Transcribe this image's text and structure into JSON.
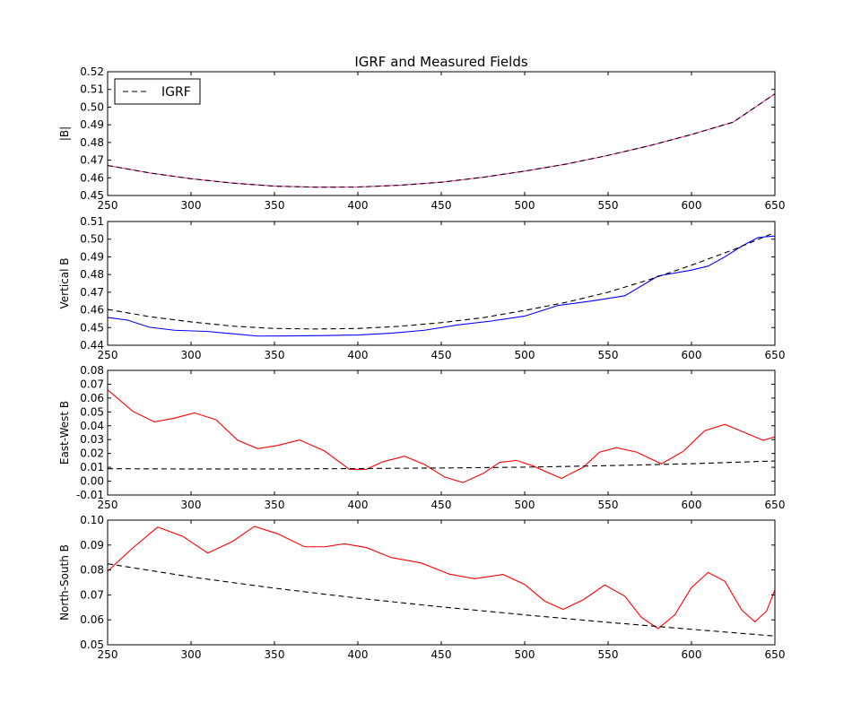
{
  "figure": {
    "title": "IGRF and Measured Fields"
  },
  "chart_data": [
    {
      "type": "line",
      "title": "IGRF and Measured Fields",
      "ylabel": "|B|",
      "xlim": [
        250,
        650
      ],
      "ylim": [
        0.45,
        0.52
      ],
      "xticks": [
        250,
        300,
        350,
        400,
        450,
        500,
        550,
        600,
        650
      ],
      "yticks": [
        0.45,
        0.46,
        0.47,
        0.48,
        0.49,
        0.5,
        0.51,
        0.52
      ],
      "ytick_labels": [
        "0.45",
        "0.46",
        "0.47",
        "0.48",
        "0.49",
        "0.50",
        "0.51",
        "0.52"
      ],
      "grid": false,
      "legend": {
        "placement": "top-left",
        "entries": [
          {
            "label": "IGRF",
            "style": "dashed",
            "color": "#000000"
          }
        ]
      },
      "series": [
        {
          "style": "solid",
          "color": "#ff3fb0",
          "x": [
            250,
            275,
            300,
            325,
            350,
            375,
            400,
            425,
            450,
            475,
            500,
            525,
            550,
            575,
            600,
            625,
            650
          ],
          "y": [
            0.467,
            0.4628,
            0.4595,
            0.457,
            0.4553,
            0.4547,
            0.4548,
            0.4558,
            0.4575,
            0.4603,
            0.4638,
            0.4678,
            0.4727,
            0.4782,
            0.4845,
            0.4915,
            0.5075
          ]
        },
        {
          "name": "IGRF",
          "style": "dashed",
          "color": "#000000",
          "x": [
            250,
            275,
            300,
            325,
            350,
            375,
            400,
            425,
            450,
            475,
            500,
            525,
            550,
            575,
            600,
            625,
            650
          ],
          "y": [
            0.467,
            0.4628,
            0.4595,
            0.457,
            0.4553,
            0.4547,
            0.4548,
            0.4558,
            0.4575,
            0.4603,
            0.4638,
            0.4678,
            0.4727,
            0.4782,
            0.4845,
            0.4915,
            0.5075
          ]
        }
      ]
    },
    {
      "type": "line",
      "ylabel": "Vertical B",
      "xlim": [
        250,
        650
      ],
      "ylim": [
        0.44,
        0.51
      ],
      "xticks": [
        250,
        300,
        350,
        400,
        450,
        500,
        550,
        600,
        650
      ],
      "yticks": [
        0.44,
        0.45,
        0.46,
        0.47,
        0.48,
        0.49,
        0.5,
        0.51
      ],
      "ytick_labels": [
        "0.44",
        "0.45",
        "0.46",
        "0.47",
        "0.48",
        "0.49",
        "0.50",
        "0.51"
      ],
      "grid": false,
      "series": [
        {
          "style": "solid",
          "color": "#0000ff",
          "x": [
            250,
            262,
            275,
            290,
            310,
            325,
            340,
            360,
            380,
            400,
            420,
            440,
            460,
            480,
            500,
            520,
            540,
            560,
            580,
            600,
            610,
            620,
            630,
            640,
            650
          ],
          "y": [
            0.4557,
            0.4542,
            0.4502,
            0.4485,
            0.4478,
            0.4465,
            0.4452,
            0.4453,
            0.4455,
            0.4458,
            0.4468,
            0.4485,
            0.4515,
            0.4537,
            0.4565,
            0.4625,
            0.465,
            0.468,
            0.4792,
            0.4825,
            0.4848,
            0.49,
            0.496,
            0.501,
            0.5018
          ]
        },
        {
          "style": "dashed",
          "color": "#000000",
          "x": [
            250,
            275,
            300,
            325,
            350,
            375,
            400,
            425,
            450,
            475,
            500,
            525,
            550,
            575,
            600,
            625,
            650
          ],
          "y": [
            0.4603,
            0.4562,
            0.4532,
            0.4508,
            0.4495,
            0.4492,
            0.4495,
            0.4507,
            0.4528,
            0.4556,
            0.4597,
            0.4643,
            0.47,
            0.4772,
            0.4853,
            0.494,
            0.5038
          ]
        }
      ]
    },
    {
      "type": "line",
      "ylabel": "East-West B",
      "xlim": [
        250,
        650
      ],
      "ylim": [
        -0.01,
        0.08
      ],
      "xticks": [
        250,
        300,
        350,
        400,
        450,
        500,
        550,
        600,
        650
      ],
      "yticks": [
        -0.01,
        0.0,
        0.01,
        0.02,
        0.03,
        0.04,
        0.05,
        0.06,
        0.07,
        0.08
      ],
      "ytick_labels": [
        "-0.01",
        "0.00",
        "0.01",
        "0.02",
        "0.03",
        "0.04",
        "0.05",
        "0.06",
        "0.07",
        "0.08"
      ],
      "grid": false,
      "series": [
        {
          "style": "solid",
          "color": "#ff0000",
          "x": [
            250,
            265,
            278,
            290,
            302,
            315,
            328,
            340,
            352,
            365,
            380,
            395,
            405,
            415,
            428,
            440,
            452,
            463,
            475,
            485,
            495,
            505,
            522,
            535,
            545,
            555,
            567,
            582,
            595,
            608,
            620,
            633,
            643,
            650
          ],
          "y": [
            0.066,
            0.0505,
            0.0428,
            0.0455,
            0.0493,
            0.0443,
            0.0295,
            0.0235,
            0.0258,
            0.0298,
            0.0218,
            0.0085,
            0.0085,
            0.014,
            0.018,
            0.012,
            0.003,
            -0.001,
            0.0055,
            0.0135,
            0.015,
            0.011,
            0.002,
            0.01,
            0.021,
            0.0242,
            0.021,
            0.0125,
            0.0215,
            0.0365,
            0.041,
            0.0345,
            0.0295,
            0.032
          ]
        },
        {
          "style": "dashed",
          "color": "#000000",
          "x": [
            250,
            300,
            350,
            400,
            450,
            500,
            550,
            600,
            650
          ],
          "y": [
            0.009,
            0.0088,
            0.0088,
            0.0091,
            0.0095,
            0.0101,
            0.0112,
            0.0126,
            0.0146
          ]
        }
      ]
    },
    {
      "type": "line",
      "ylabel": "North-South B",
      "xlim": [
        250,
        650
      ],
      "ylim": [
        0.05,
        0.1
      ],
      "xticks": [
        250,
        300,
        350,
        400,
        450,
        500,
        550,
        600,
        650
      ],
      "yticks": [
        0.05,
        0.06,
        0.07,
        0.08,
        0.09,
        0.1
      ],
      "ytick_labels": [
        "0.05",
        "0.06",
        "0.07",
        "0.08",
        "0.09",
        "0.10"
      ],
      "grid": false,
      "series": [
        {
          "style": "solid",
          "color": "#ff0000",
          "x": [
            250,
            265,
            280,
            295,
            310,
            325,
            338,
            352,
            368,
            380,
            392,
            405,
            420,
            438,
            455,
            470,
            487,
            500,
            512,
            523,
            535,
            548,
            560,
            570,
            580,
            590,
            600,
            610,
            620,
            630,
            638,
            645,
            650
          ],
          "y": [
            0.0795,
            0.0888,
            0.0972,
            0.0935,
            0.0868,
            0.0915,
            0.0975,
            0.0945,
            0.0893,
            0.0893,
            0.0905,
            0.089,
            0.085,
            0.0828,
            0.0783,
            0.0765,
            0.0782,
            0.0742,
            0.0675,
            0.0642,
            0.068,
            0.074,
            0.0695,
            0.061,
            0.0565,
            0.062,
            0.073,
            0.079,
            0.0755,
            0.064,
            0.0592,
            0.0635,
            0.072
          ]
        },
        {
          "style": "dashed",
          "color": "#000000",
          "x": [
            250,
            300,
            350,
            400,
            450,
            500,
            550,
            600,
            650
          ],
          "y": [
            0.0825,
            0.0772,
            0.0727,
            0.0687,
            0.0652,
            0.062,
            0.059,
            0.0562,
            0.0535
          ]
        }
      ]
    }
  ]
}
